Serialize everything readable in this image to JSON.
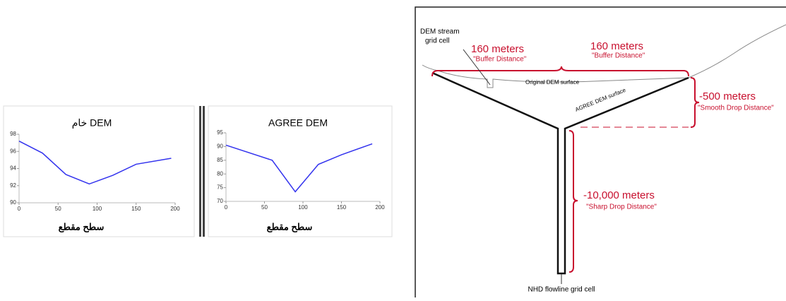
{
  "chart_data": [
    {
      "type": "line",
      "title": "خام DEM",
      "x_label": "سطح مقطع",
      "x": [
        0,
        30,
        60,
        90,
        120,
        150,
        195
      ],
      "series": [
        {
          "color": "#3333ee",
          "values": [
            97.2,
            95.8,
            93.3,
            92.2,
            93.2,
            94.5,
            95.2
          ]
        }
      ],
      "xlim": [
        0,
        200
      ],
      "xticks": [
        0,
        50,
        100,
        150,
        200
      ],
      "ylim": [
        90,
        98
      ],
      "yticks": [
        90,
        92,
        94,
        96,
        98
      ]
    },
    {
      "type": "line",
      "title": "AGREE DEM",
      "x_label": "سطح مقطع",
      "x": [
        0,
        60,
        90,
        120,
        150,
        190
      ],
      "series": [
        {
          "color": "#3333ee",
          "values": [
            90.5,
            85,
            73.5,
            83.5,
            87,
            91
          ]
        }
      ],
      "xlim": [
        0,
        200
      ],
      "xticks": [
        0,
        50,
        100,
        150,
        200
      ],
      "ylim": [
        70,
        95
      ],
      "yticks": [
        70,
        75,
        80,
        85,
        90,
        95
      ]
    }
  ],
  "diagram": {
    "stream_cell": [
      "DEM stream",
      "grid cell"
    ],
    "buffer_left": {
      "value": "160 meters",
      "label": "\"Buffer Distance\""
    },
    "buffer_right": {
      "value": "160 meters",
      "label": "\"Buffer Distance\""
    },
    "original_surface": "Original DEM surface",
    "agree_surface": "AGREE DEM surface",
    "smooth_drop": {
      "value": "-500 meters",
      "label": "\"Smooth Drop Distance\""
    },
    "sharp_drop": {
      "value": "-10,000 meters",
      "label": "\"Sharp Drop Distance\""
    },
    "flowline_cell": "NHD flowline grid cell"
  }
}
